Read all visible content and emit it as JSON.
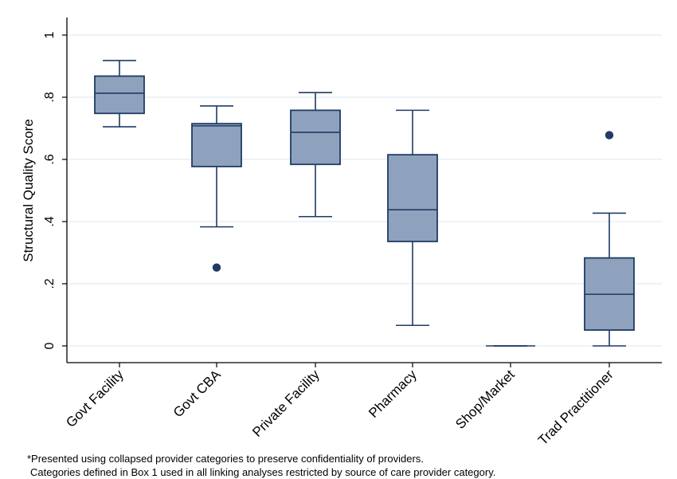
{
  "chart_data": {
    "type": "boxplot",
    "title": "",
    "ylabel": "Structural Quality Score",
    "xlabel": "",
    "ylim": [
      0,
      1
    ],
    "yticks": [
      0,
      0.2,
      0.4,
      0.6,
      0.8,
      1
    ],
    "ytick_labels": [
      "0",
      ".2",
      ".4",
      ".6",
      ".8",
      "1"
    ],
    "grid": true,
    "legend": "none",
    "colors": {
      "box_fill": "#8fa2bd",
      "box_stroke": "#1f3b66",
      "outlier": "#1f3b66",
      "grid": "#e3ecf0"
    },
    "categories": [
      "Govt Facility",
      "Govt CBA",
      "Private Facility",
      "Pharmacy",
      "Shop/Market",
      "Trad Practitioner"
    ],
    "boxes": [
      {
        "category": "Govt Facility",
        "whisker_low": 0.705,
        "q1": 0.748,
        "median": 0.813,
        "q3": 0.868,
        "whisker_high": 0.918,
        "outliers": []
      },
      {
        "category": "Govt CBA",
        "whisker_low": 0.383,
        "q1": 0.577,
        "median": 0.708,
        "q3": 0.715,
        "whisker_high": 0.772,
        "outliers": [
          0.252
        ]
      },
      {
        "category": "Private Facility",
        "whisker_low": 0.416,
        "q1": 0.584,
        "median": 0.687,
        "q3": 0.758,
        "whisker_high": 0.815,
        "outliers": []
      },
      {
        "category": "Pharmacy",
        "whisker_low": 0.066,
        "q1": 0.336,
        "median": 0.438,
        "q3": 0.615,
        "whisker_high": 0.758,
        "outliers": []
      },
      {
        "category": "Shop/Market",
        "whisker_low": 0,
        "q1": 0,
        "median": 0,
        "q3": 0,
        "whisker_high": 0,
        "outliers": []
      },
      {
        "category": "Trad Practitioner",
        "whisker_low": 0,
        "q1": 0.051,
        "median": 0.166,
        "q3": 0.283,
        "whisker_high": 0.427,
        "outliers": [
          0.678
        ]
      }
    ]
  },
  "footnotes": {
    "line1": "*Presented using collapsed provider categories to preserve confidentiality of providers.",
    "line2": "Categories defined in Box 1 used in all linking analyses restricted by source of care provider category."
  }
}
